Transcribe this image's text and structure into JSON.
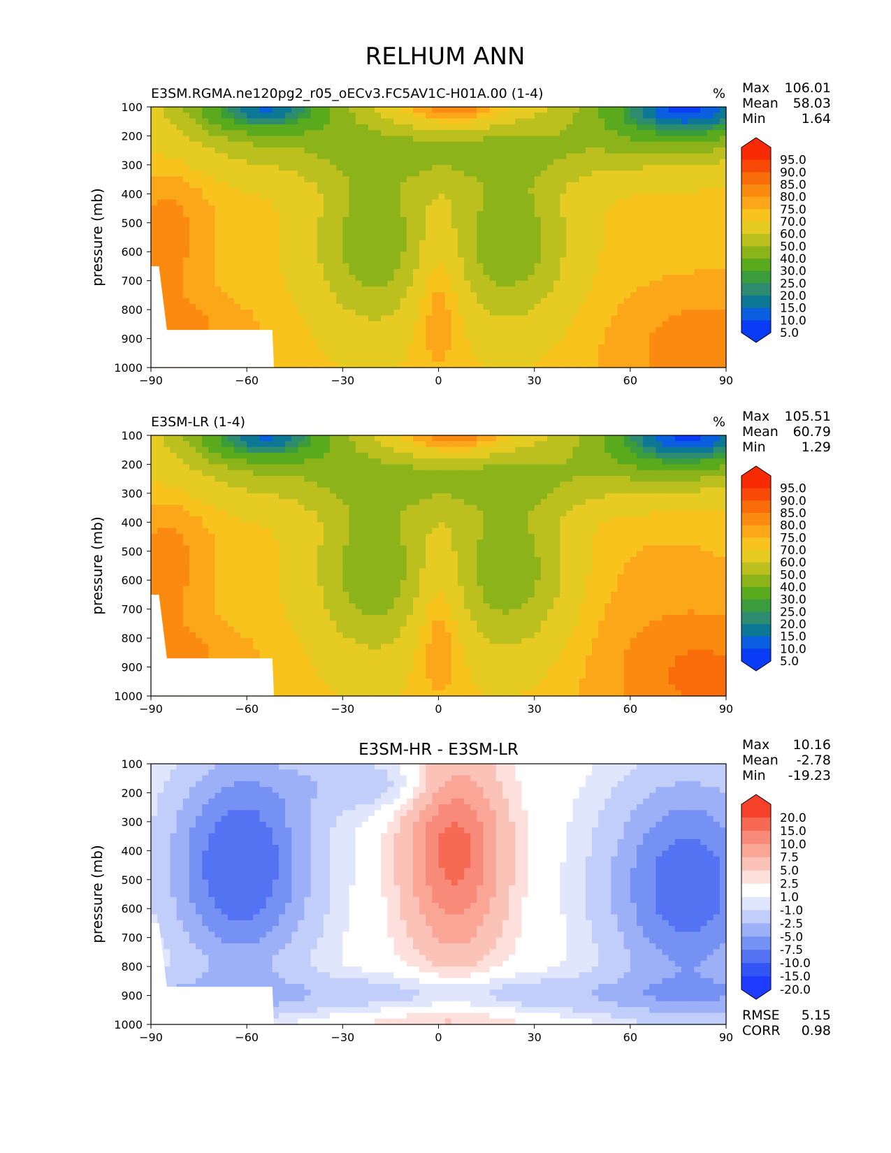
{
  "figure_title": "RELHUM ANN",
  "chart_data": [
    {
      "type": "heatmap",
      "title": "E3SM.RGMA.ne120pg2_r05_oECv3.FC5AV1C-H01A.00 (1-4)",
      "units": "%",
      "ylabel": "pressure (mb)",
      "xlim": [
        -90,
        90
      ],
      "ylim": [
        1000,
        100
      ],
      "x_ticks": [
        "−90",
        "−60",
        "−30",
        "0",
        "30",
        "60",
        "90"
      ],
      "y_ticks": [
        "100",
        "200",
        "300",
        "400",
        "500",
        "600",
        "700",
        "800",
        "900",
        "1000"
      ],
      "stats": [
        {
          "label": "Max",
          "value": "106.01"
        },
        {
          "label": "Mean",
          "value": "58.03"
        },
        {
          "label": "Min",
          "value": "1.64"
        }
      ],
      "colorbar_labels": [
        "95.0",
        "90.0",
        "85.0",
        "80.0",
        "75.0",
        "70.0",
        "60.0",
        "50.0",
        "40.0",
        "30.0",
        "25.0",
        "20.0",
        "15.0",
        "10.0",
        "5.0"
      ]
    },
    {
      "type": "heatmap",
      "title": "E3SM-LR (1-4)",
      "units": "%",
      "ylabel": "pressure (mb)",
      "xlim": [
        -90,
        90
      ],
      "ylim": [
        1000,
        100
      ],
      "x_ticks": [
        "−90",
        "−60",
        "−30",
        "0",
        "30",
        "60",
        "90"
      ],
      "y_ticks": [
        "100",
        "200",
        "300",
        "400",
        "500",
        "600",
        "700",
        "800",
        "900",
        "1000"
      ],
      "stats": [
        {
          "label": "Max",
          "value": "105.51"
        },
        {
          "label": "Mean",
          "value": "60.79"
        },
        {
          "label": "Min",
          "value": "1.29"
        }
      ],
      "colorbar_labels": [
        "95.0",
        "90.0",
        "85.0",
        "80.0",
        "75.0",
        "70.0",
        "60.0",
        "50.0",
        "40.0",
        "30.0",
        "25.0",
        "20.0",
        "15.0",
        "10.0",
        "5.0"
      ]
    },
    {
      "type": "heatmap",
      "title": "E3SM-HR - E3SM-LR",
      "units": "",
      "ylabel": "pressure (mb)",
      "xlim": [
        -90,
        90
      ],
      "ylim": [
        1000,
        100
      ],
      "x_ticks": [
        "−90",
        "−60",
        "−30",
        "0",
        "30",
        "60",
        "90"
      ],
      "y_ticks": [
        "100",
        "200",
        "300",
        "400",
        "500",
        "600",
        "700",
        "800",
        "900",
        "1000"
      ],
      "stats": [
        {
          "label": "Max",
          "value": "10.16"
        },
        {
          "label": "Mean",
          "value": "-2.78"
        },
        {
          "label": "Min",
          "value": "-19.23"
        }
      ],
      "extra_stats": [
        {
          "label": "RMSE",
          "value": "5.15"
        },
        {
          "label": "CORR",
          "value": "0.98"
        }
      ],
      "colorbar_labels": [
        "20.0",
        "15.0",
        "10.0",
        "7.5",
        "5.0",
        "2.5",
        "1.0",
        "-1.0",
        "-2.5",
        "-5.0",
        "-7.5",
        "-10.0",
        "-15.0",
        "-20.0"
      ]
    }
  ],
  "colors": {
    "abs_scale": [
      "#0a3cf5",
      "#0a5fe0",
      "#0d7895",
      "#2d8c70",
      "#3a9c3a",
      "#5aaa1e",
      "#8cb41a",
      "#bcc01e",
      "#e6cc22",
      "#f9c31e",
      "#fca61a",
      "#fb8b10",
      "#f96c0a",
      "#f84a06",
      "#f82a04"
    ],
    "diff_scale": [
      "#1e3cff",
      "#3355f5",
      "#5473f2",
      "#7691f4",
      "#9cb0f7",
      "#c1cefa",
      "#e0e6fc",
      "#ffffff",
      "#fde0dc",
      "#fbc2b8",
      "#f9a697",
      "#f78a78",
      "#f66a54",
      "#f5402a"
    ]
  }
}
